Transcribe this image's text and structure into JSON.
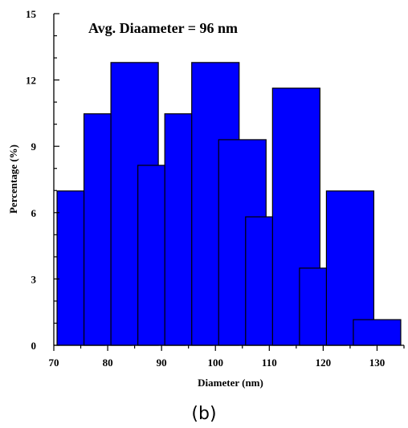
{
  "chart_data": {
    "type": "bar",
    "x": [
      75,
      80,
      85,
      90,
      95,
      100,
      105,
      110,
      115,
      120,
      125,
      130
    ],
    "values": [
      6.98,
      10.47,
      12.79,
      8.14,
      10.47,
      12.79,
      9.3,
      5.81,
      11.63,
      3.49,
      6.98,
      1.16
    ],
    "xlabel": "Diameter (nm)",
    "ylabel": "Percentage (%)",
    "xlim": [
      70,
      135
    ],
    "ylim": [
      0,
      15
    ],
    "xticks": [
      70,
      80,
      90,
      100,
      110,
      120,
      130
    ],
    "yticks": [
      0,
      3,
      6,
      9,
      12,
      15
    ],
    "annotation": "Avg. Diaameter = 96 nm",
    "bar_color": "#0000ff",
    "grid": false,
    "legend": "none"
  },
  "caption": "(b)"
}
